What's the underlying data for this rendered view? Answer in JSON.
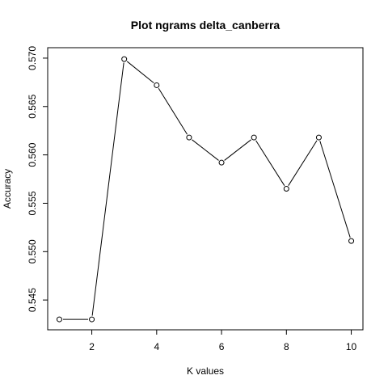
{
  "chart_data": {
    "type": "line",
    "title": "Plot ngrams delta_canberra",
    "xlabel": "K values",
    "ylabel": "Accuracy",
    "x": [
      1,
      2,
      3,
      4,
      5,
      6,
      7,
      8,
      9,
      10
    ],
    "series": [
      {
        "values": [
          0.543,
          0.543,
          0.5699,
          0.5672,
          0.5618,
          0.5592,
          0.5618,
          0.5565,
          0.5618,
          0.5511
        ]
      }
    ],
    "xticks": [
      2,
      4,
      6,
      8,
      10
    ],
    "yticks": [
      0.545,
      0.55,
      0.555,
      0.56,
      0.565,
      0.57
    ],
    "xtick_labels": [
      "2",
      "4",
      "6",
      "8",
      "10"
    ],
    "ytick_labels": [
      "0.545",
      "0.550",
      "0.555",
      "0.560",
      "0.565",
      "0.570"
    ],
    "xlim": [
      0.64,
      10.36
    ],
    "ylim": [
      0.54192,
      0.57108
    ],
    "marker": "open-circle",
    "line_color": "#000000",
    "grid": false,
    "legend": "none"
  }
}
